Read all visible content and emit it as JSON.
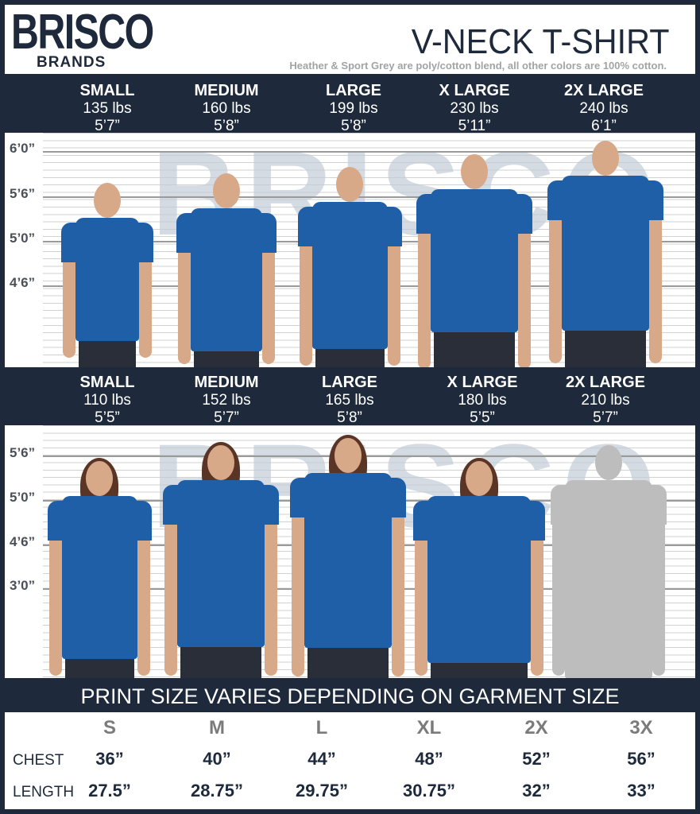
{
  "brand": {
    "logo_top": "BRISCO",
    "logo_bottom": "BRANDS"
  },
  "header": {
    "title": "V-NECK T-SHIRT",
    "subtitle": "Heather & Sport Grey are poly/cotton blend, all other colors are 100% cotton."
  },
  "colors": {
    "navy": "#1e2a3b",
    "shirt_blue": "#1f5fa8",
    "subtitle_grey": "#a3a3a3"
  },
  "men": {
    "sizes": [
      {
        "name": "SMALL",
        "weight": "135 lbs",
        "height": "5’7”"
      },
      {
        "name": "MEDIUM",
        "weight": "160 lbs",
        "height": "5’8”"
      },
      {
        "name": "LARGE",
        "weight": "199 lbs",
        "height": "5’8”"
      },
      {
        "name": "X LARGE",
        "weight": "230 lbs",
        "height": "5’11”"
      },
      {
        "name": "2X LARGE",
        "weight": "240 lbs",
        "height": "6’1”"
      }
    ],
    "height_marks": [
      "6’0”",
      "5’6”",
      "5’0”",
      "4’6”"
    ]
  },
  "women": {
    "sizes": [
      {
        "name": "SMALL",
        "weight": "110 lbs",
        "height": "5’5”"
      },
      {
        "name": "MEDIUM",
        "weight": "152 lbs",
        "height": "5’7”"
      },
      {
        "name": "LARGE",
        "weight": "165 lbs",
        "height": "5’8”"
      },
      {
        "name": "X LARGE",
        "weight": "180 lbs",
        "height": "5’5”"
      },
      {
        "name": "2X LARGE",
        "weight": "210 lbs",
        "height": "5’7”"
      }
    ],
    "height_marks": [
      "5’6”",
      "5’0”",
      "4’6”",
      "3’0”"
    ]
  },
  "print_note": "PRINT SIZE VARIES DEPENDING ON GARMENT SIZE",
  "size_table": {
    "columns": [
      "S",
      "M",
      "L",
      "XL",
      "2X",
      "3X"
    ],
    "rows": [
      {
        "label": "CHEST",
        "values": [
          "36”",
          "40”",
          "44”",
          "48”",
          "52”",
          "56”"
        ]
      },
      {
        "label": "LENGTH",
        "values": [
          "27.5”",
          "28.75”",
          "29.75”",
          "30.75”",
          "32”",
          "33”"
        ]
      }
    ]
  }
}
